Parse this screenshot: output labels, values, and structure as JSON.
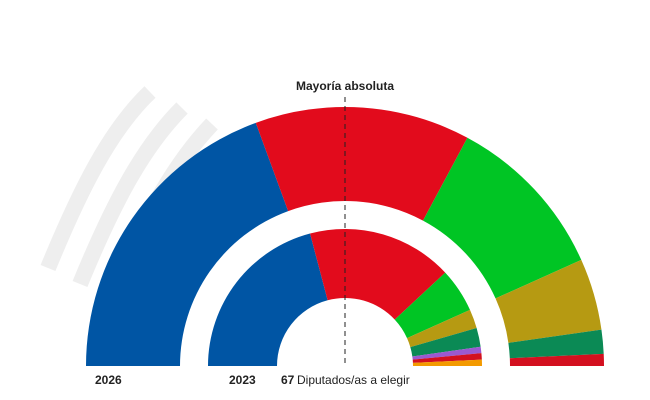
{
  "chart_data": {
    "type": "hemicycle",
    "title": "Mayoría absoluta",
    "total": 67,
    "total_label": "Diputados/as a elegir",
    "rings": [
      {
        "name": "2026",
        "values": [
          26,
          18,
          14,
          6,
          2,
          1
        ],
        "colors": [
          "#0055a4",
          "#e20b1c",
          "#00c524",
          "#b69a12",
          "#0b8a55",
          "#d3101f"
        ]
      },
      {
        "name": "2023",
        "values": [
          28,
          23,
          7,
          3,
          3,
          1,
          1,
          1
        ],
        "colors": [
          "#0055a4",
          "#e20b1c",
          "#00c524",
          "#b69a12",
          "#0b8a55",
          "#9b59d0",
          "#d3101f",
          "#f39a00"
        ]
      }
    ]
  }
}
